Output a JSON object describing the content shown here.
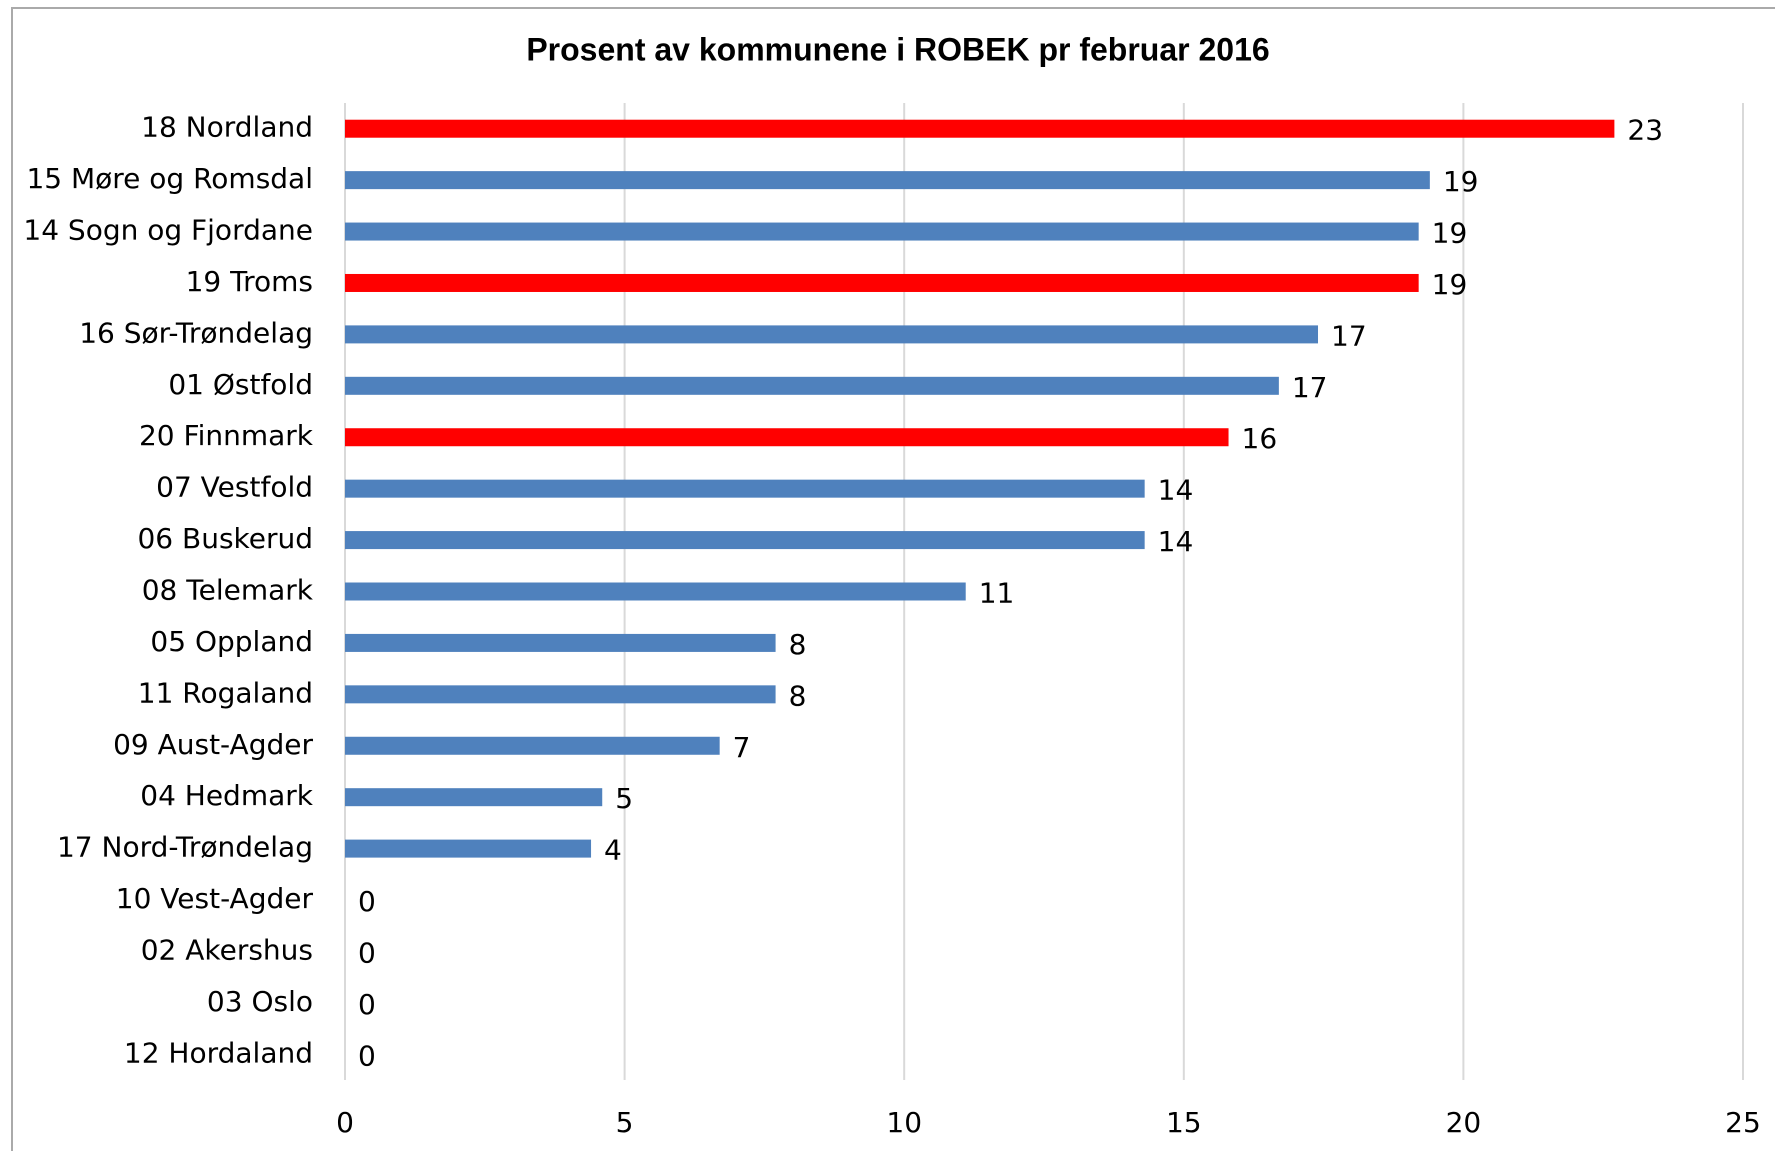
{
  "chart_data": {
    "type": "bar",
    "orientation": "horizontal",
    "title": "Prosent av kommunene i ROBEK pr februar 2016",
    "categories": [
      "18 Nordland",
      "15 Møre og Romsdal",
      "14 Sogn og Fjordane",
      "19 Troms",
      "16 Sør-Trøndelag",
      "01 Østfold",
      "20 Finnmark",
      "07 Vestfold",
      "06 Buskerud",
      "08 Telemark",
      "05 Oppland",
      "11 Rogaland",
      "09 Aust-Agder",
      "04 Hedmark",
      "17 Nord-Trøndelag",
      "10 Vest-Agder",
      "02 Akershus",
      "03 Oslo",
      "12 Hordaland"
    ],
    "values": [
      22.7,
      19.4,
      19.2,
      19.2,
      17.4,
      16.7,
      15.8,
      14.3,
      14.3,
      11.1,
      7.7,
      7.7,
      6.7,
      4.6,
      4.4,
      0,
      0,
      0,
      0
    ],
    "value_labels": [
      "23",
      "19",
      "19",
      "19",
      "17",
      "17",
      "16",
      "14",
      "14",
      "11",
      "8",
      "8",
      "7",
      "5",
      "4",
      "0",
      "0",
      "0",
      "0"
    ],
    "colors": [
      "#ff0000",
      "#4f81bd",
      "#4f81bd",
      "#ff0000",
      "#4f81bd",
      "#4f81bd",
      "#ff0000",
      "#4f81bd",
      "#4f81bd",
      "#4f81bd",
      "#4f81bd",
      "#4f81bd",
      "#4f81bd",
      "#4f81bd",
      "#4f81bd",
      "#4f81bd",
      "#4f81bd",
      "#4f81bd",
      "#4f81bd"
    ],
    "xlim": [
      0,
      25
    ],
    "xticks": [
      0,
      5,
      10,
      15,
      20,
      25
    ],
    "grid": true
  }
}
